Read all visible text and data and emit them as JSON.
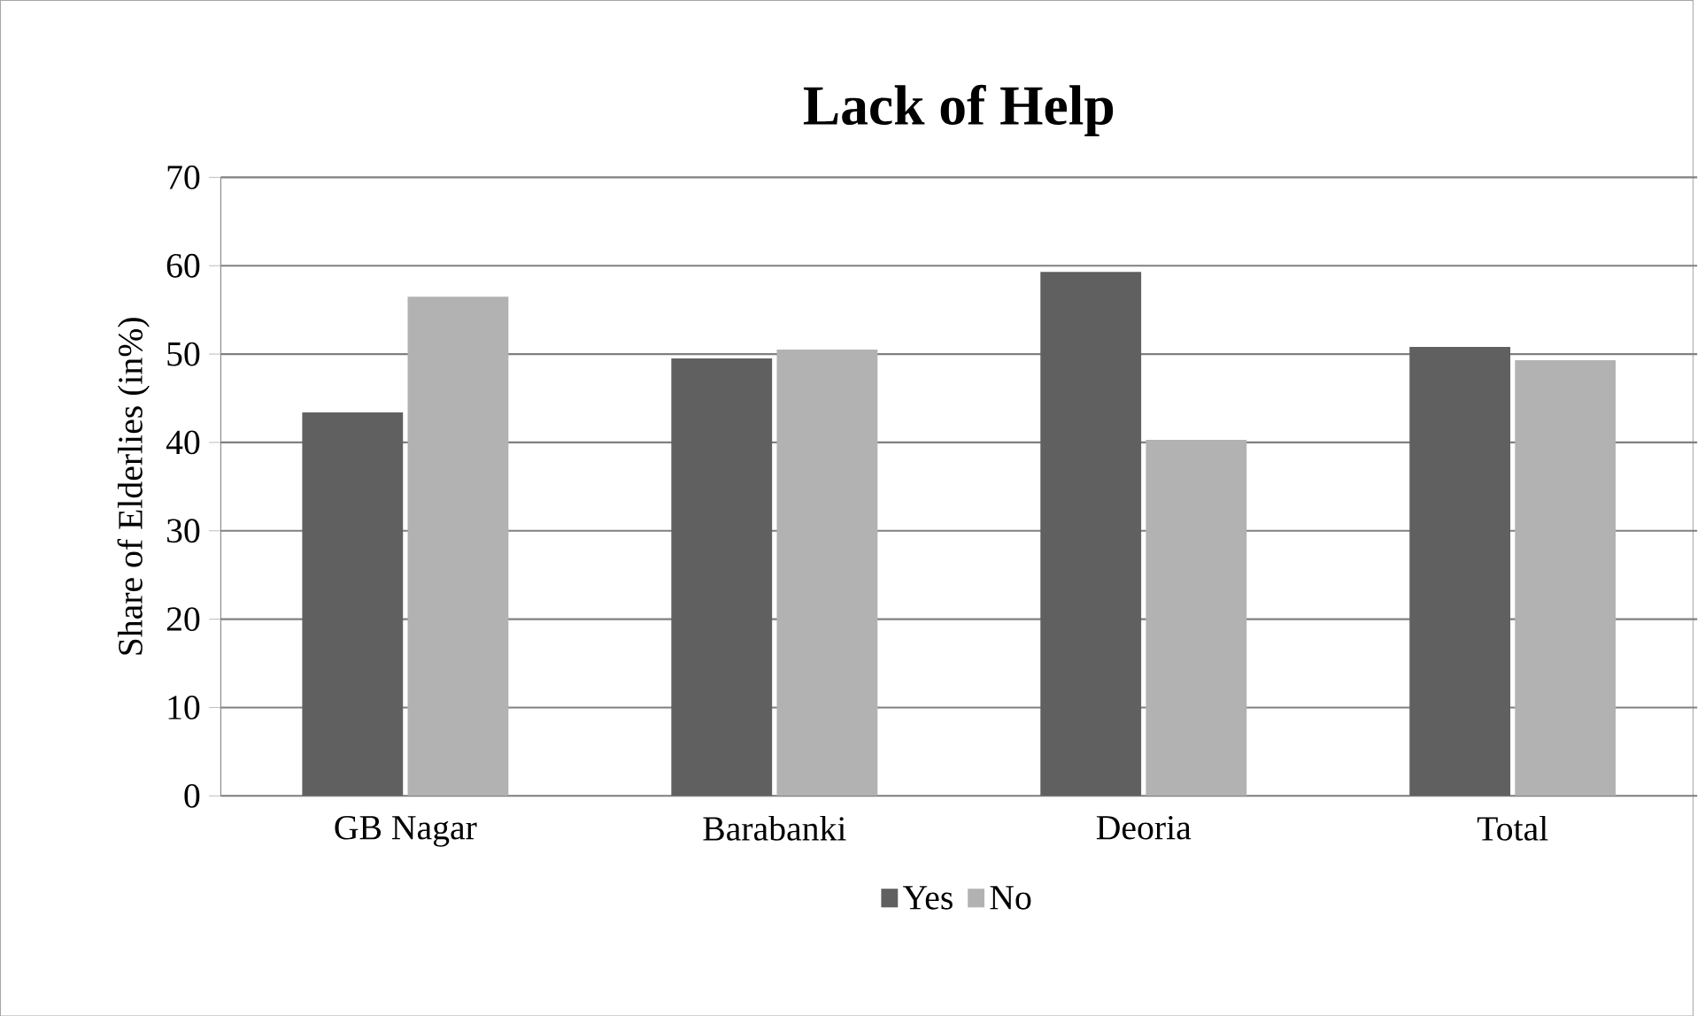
{
  "chart_data": {
    "type": "bar",
    "title": "Lack of Help",
    "ylabel": "Share of Elderlies (in%)",
    "categories": [
      "GB Nagar",
      "Barabanki",
      "Deoria",
      "Total"
    ],
    "series": [
      {
        "name": "Yes",
        "color": "#606060",
        "values": [
          43.4,
          49.5,
          59.3,
          50.8
        ]
      },
      {
        "name": "No",
        "color": "#b2b2b2",
        "values": [
          56.5,
          50.5,
          40.3,
          49.3
        ]
      }
    ],
    "ylim": [
      0,
      70
    ],
    "yticks": [
      0,
      10,
      20,
      30,
      40,
      50,
      60,
      70
    ],
    "grid": "y",
    "legend": "bottom"
  }
}
